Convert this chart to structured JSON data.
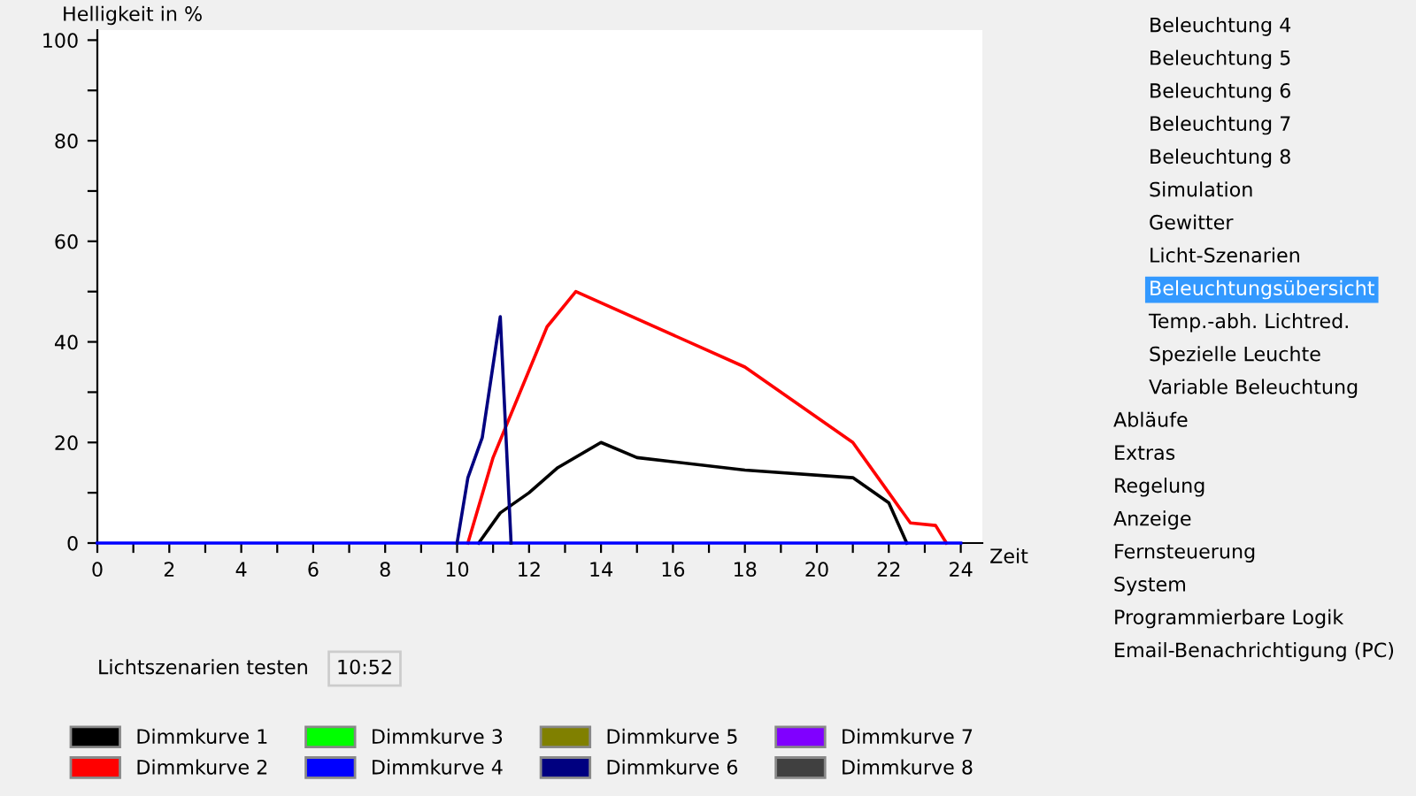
{
  "chart_data": {
    "type": "line",
    "ylabel": "Helligkeit in %",
    "xlabel": "Zeit",
    "xlim": [
      0,
      24.6
    ],
    "ylim": [
      0,
      102
    ],
    "xticks": [
      0,
      {
        "value": 1,
        "label": null
      },
      2,
      {
        "value": 3,
        "label": null
      },
      4,
      {
        "value": 5,
        "label": null
      },
      6,
      {
        "value": 7,
        "label": null
      },
      8,
      {
        "value": 9,
        "label": null
      },
      10,
      {
        "value": 11,
        "label": null
      },
      12,
      {
        "value": 13,
        "label": null
      },
      14,
      {
        "value": 15,
        "label": null
      },
      16,
      {
        "value": 17,
        "label": null
      },
      18,
      {
        "value": 19,
        "label": null
      },
      20,
      {
        "value": 21,
        "label": null
      },
      22,
      {
        "value": 23,
        "label": null
      },
      24
    ],
    "yticks": [
      0,
      {
        "value": 10,
        "label": null
      },
      20,
      {
        "value": 30,
        "label": null
      },
      40,
      {
        "value": 50,
        "label": null
      },
      60,
      {
        "value": 70,
        "label": null
      },
      80,
      {
        "value": 90,
        "label": null
      },
      100
    ],
    "grid": false,
    "legend": "bottom",
    "marker": "none",
    "line_style": "solid",
    "series": [
      {
        "name": "Dimmkurve 1",
        "color": "#000000",
        "x": [
          10.6,
          11.2,
          12,
          12.8,
          14,
          15,
          18,
          21,
          22,
          22.5
        ],
        "values": [
          0,
          6,
          10,
          15,
          20,
          17,
          14.5,
          13,
          8,
          0
        ]
      },
      {
        "name": "Dimmkurve 2",
        "color": "#ff0000",
        "x": [
          10.3,
          11,
          12.5,
          13.3,
          18,
          21,
          22,
          22.6,
          23.3,
          23.6
        ],
        "values": [
          0,
          17,
          43,
          50,
          35,
          20,
          10,
          4,
          3.5,
          0
        ]
      },
      {
        "name": "Dimmkurve 3",
        "color": "#00ff00"
      },
      {
        "name": "Dimmkurve 4",
        "color": "#0000ff",
        "x": [
          0,
          24
        ],
        "values": [
          0,
          0
        ]
      },
      {
        "name": "Dimmkurve 5",
        "color": "#808000"
      },
      {
        "name": "Dimmkurve 6",
        "color": "#000080",
        "x": [
          10,
          10.3,
          10.7,
          11.2,
          11.5
        ],
        "values": [
          0,
          13,
          21,
          45,
          0
        ]
      },
      {
        "name": "Dimmkurve 7",
        "color": "#8000ff"
      },
      {
        "name": "Dimmkurve 8",
        "color": "#404040"
      }
    ],
    "annotations": [
      "Lichtszenarien testen",
      "10:52",
      "Beleuchtung 4",
      "Beleuchtung 5",
      "Beleuchtung 6",
      "Beleuchtung 7",
      "Beleuchtung 8",
      "Simulation",
      "Gewitter",
      "Licht-Szenarien",
      "Beleuchtungsübersicht",
      "Temp.-abh. Lichtred.",
      "Spezielle Leuchte",
      "Variable Beleuchtung",
      "Abläufe",
      "Extras",
      "Regelung",
      "Anzeige",
      "Fernsteuerung",
      "System",
      "Programmierbare Logik",
      "Email-Benachrichtigung (PC)"
    ]
  }
}
